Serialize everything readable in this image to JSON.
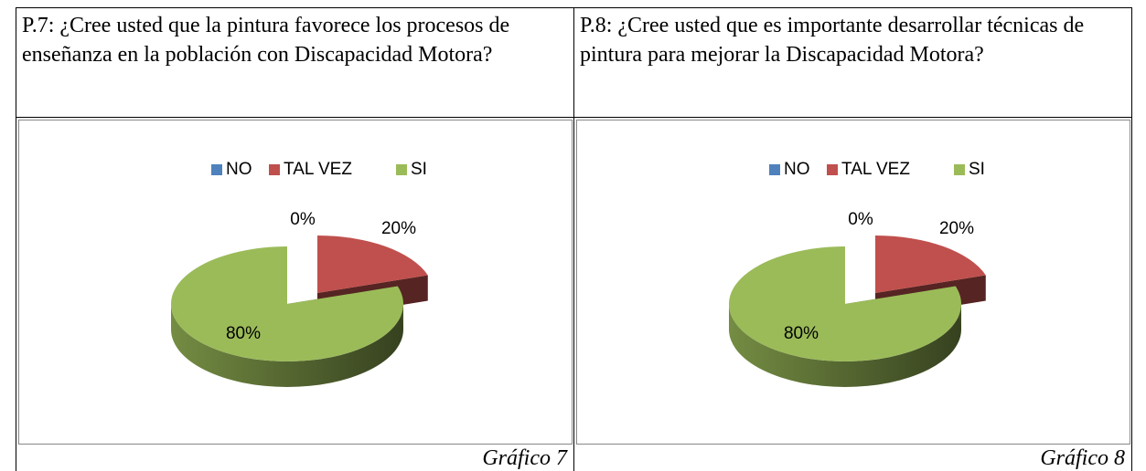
{
  "chart_data": [
    {
      "type": "pie",
      "title": "P.7: ¿Cree usted que la pintura favorece los procesos de enseñanza en la población con Discapacidad Motora?",
      "caption": "Gráfico 7",
      "categories": [
        "NO",
        "TAL VEZ",
        "SI"
      ],
      "values": [
        0,
        20,
        80
      ],
      "value_labels": [
        "0%",
        "20%",
        "80%"
      ],
      "colors": [
        "#4f81bd",
        "#c0504d",
        "#9bbb59"
      ],
      "legend": "top"
    },
    {
      "type": "pie",
      "title": "P.8: ¿Cree usted que es importante desarrollar técnicas de pintura para mejorar la Discapacidad Motora?",
      "caption": "Gráfico 8",
      "categories": [
        "NO",
        "TAL VEZ",
        "SI"
      ],
      "values": [
        0,
        20,
        80
      ],
      "value_labels": [
        "0%",
        "20%",
        "80%"
      ],
      "colors": [
        "#4f81bd",
        "#c0504d",
        "#9bbb59"
      ],
      "legend": "top"
    }
  ]
}
